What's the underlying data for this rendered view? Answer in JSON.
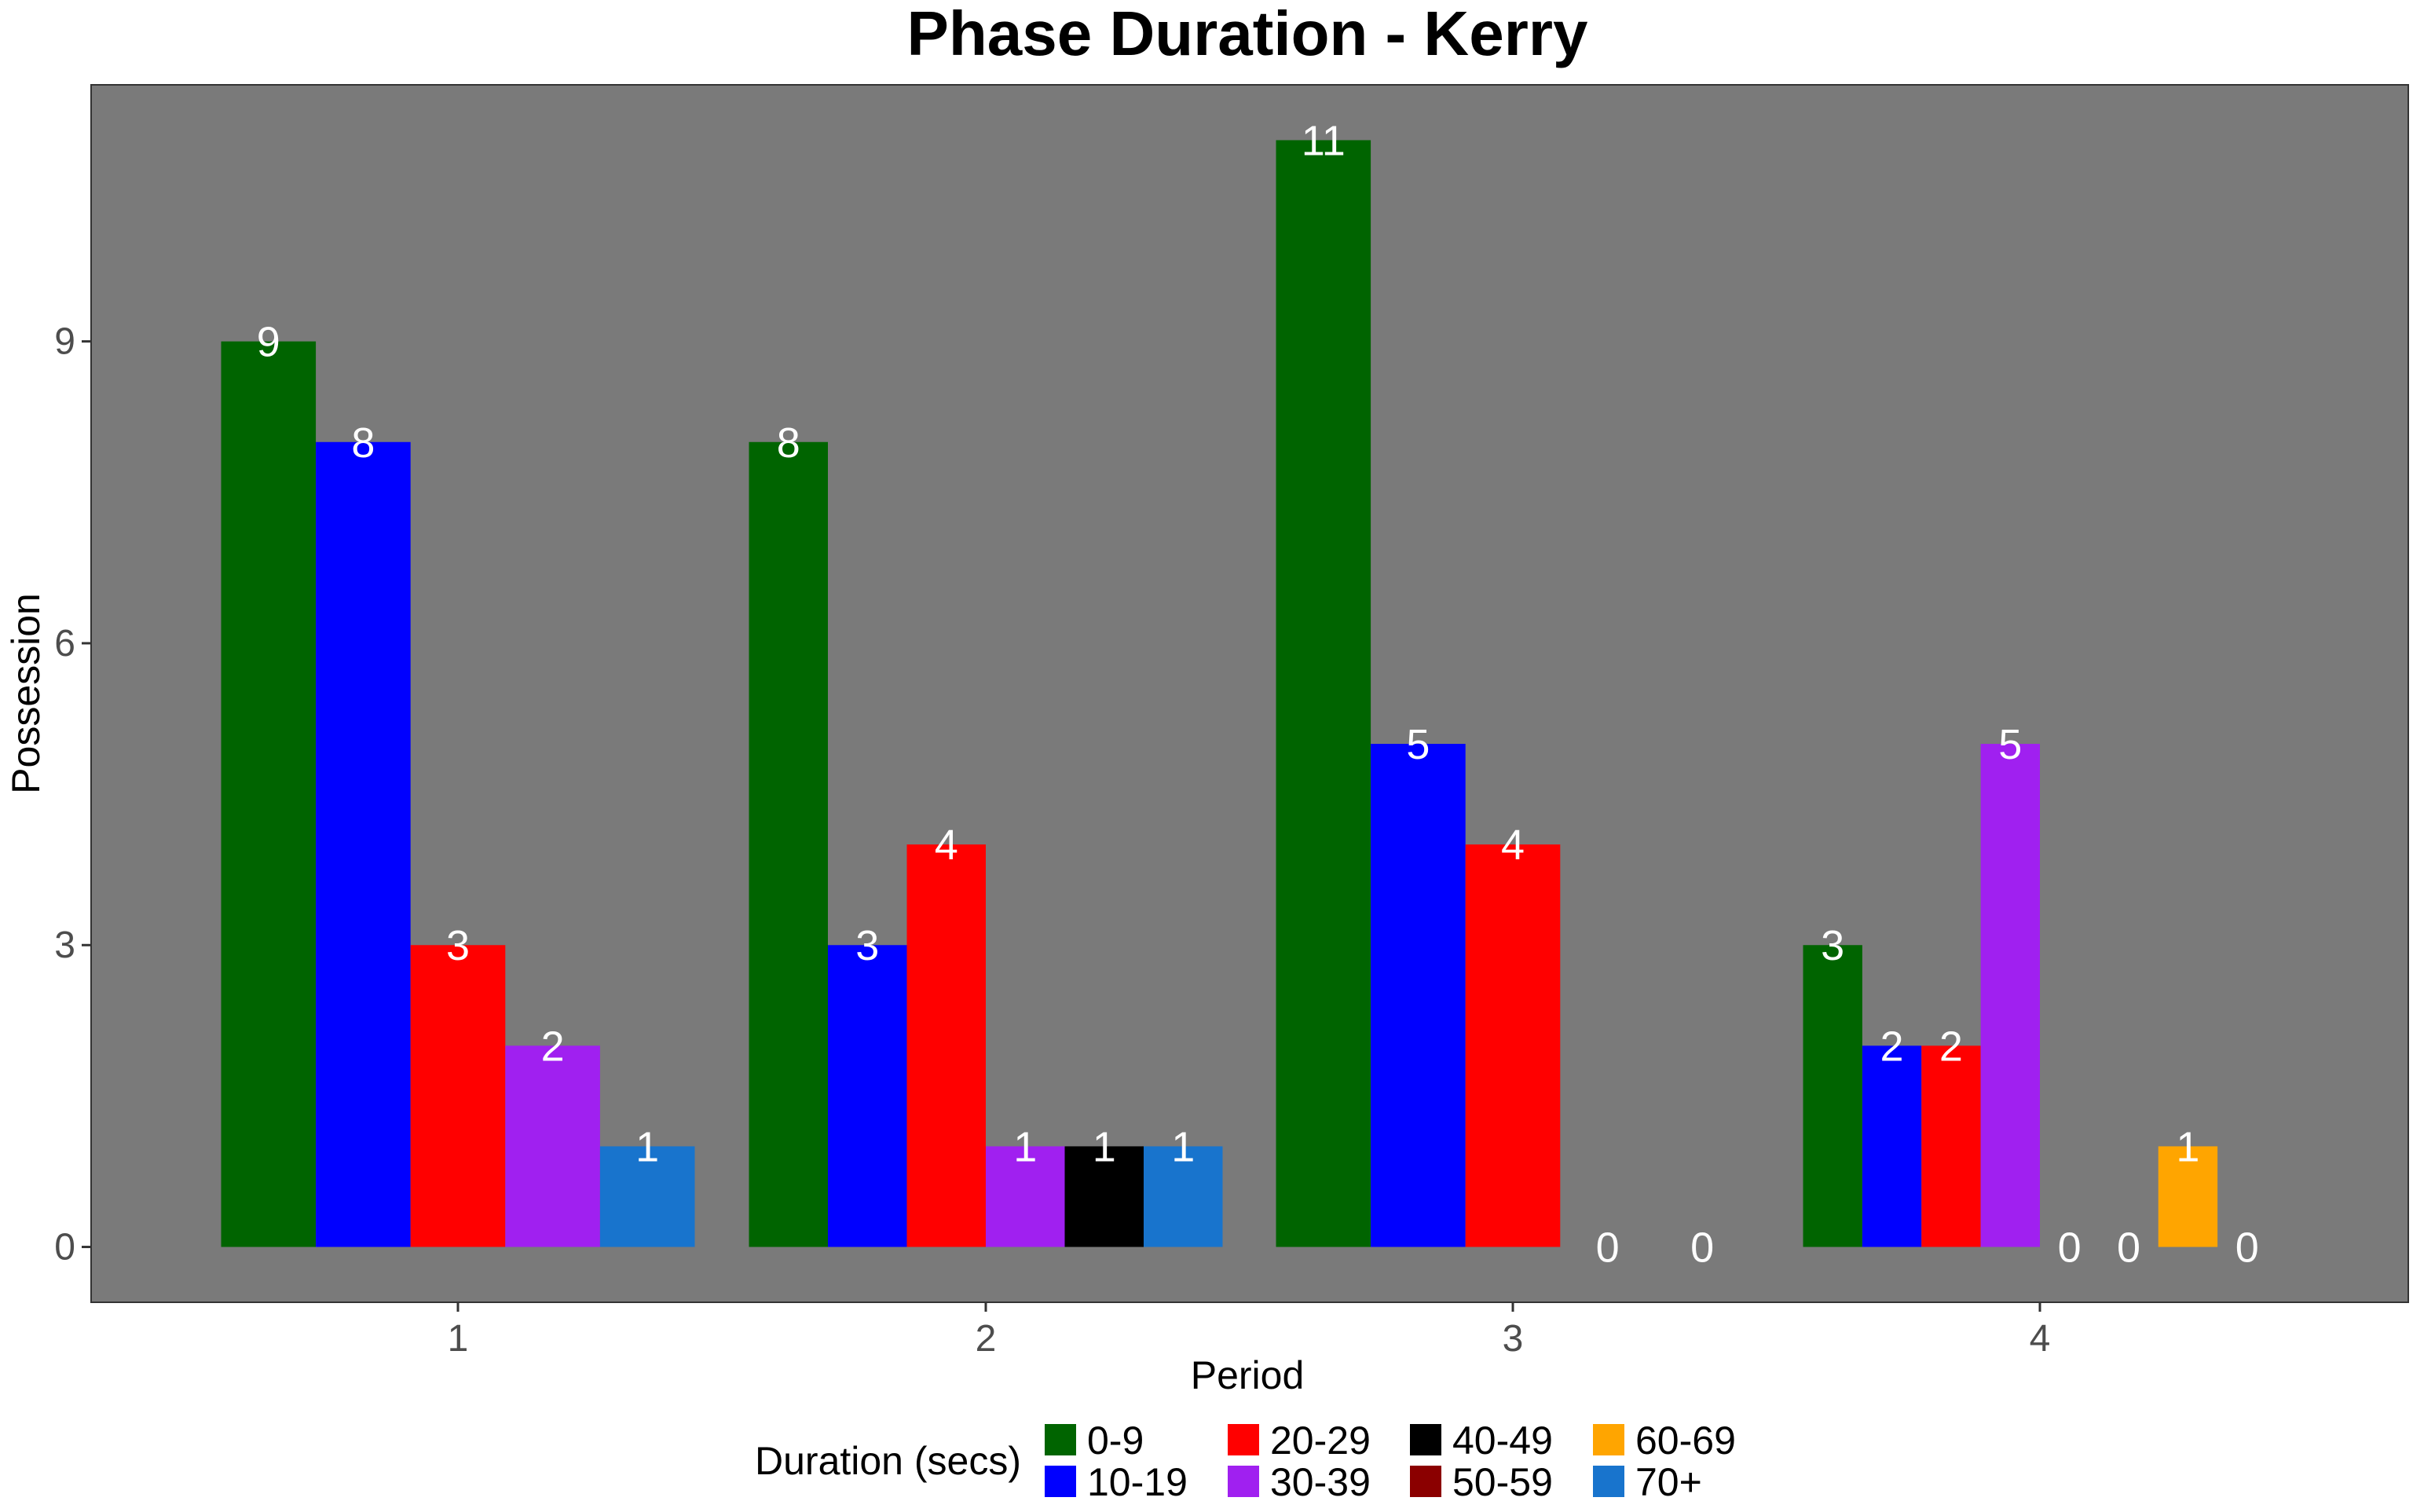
{
  "chart_data": {
    "type": "bar",
    "title": "Phase Duration - Kerry",
    "xlabel": "Period",
    "ylabel": "Possession",
    "ylim": [
      -0.55,
      11.55
    ],
    "yticks": [
      0,
      3,
      6,
      9
    ],
    "grid": false,
    "legend_position": "bottom",
    "legend_title": "Duration (secs)",
    "panel_background": "#7a7a7a",
    "legend_order": [
      "0-9",
      "20-29",
      "40-49",
      "60-69",
      "10-19",
      "30-39",
      "50-59",
      "70+"
    ],
    "categories": [
      "1",
      "2",
      "3",
      "4"
    ],
    "series": [
      {
        "name": "0-9",
        "color": "#006400"
      },
      {
        "name": "10-19",
        "color": "#0000ff"
      },
      {
        "name": "20-29",
        "color": "#ff0000"
      },
      {
        "name": "30-39",
        "color": "#a020f0"
      },
      {
        "name": "40-49",
        "color": "#000000"
      },
      {
        "name": "50-59",
        "color": "#8b0000"
      },
      {
        "name": "60-69",
        "color": "#ffa500"
      },
      {
        "name": "70+",
        "color": "#1874cd"
      }
    ],
    "groups": [
      {
        "period": "1",
        "bars": [
          {
            "series": "0-9",
            "value": 9
          },
          {
            "series": "10-19",
            "value": 8
          },
          {
            "series": "20-29",
            "value": 3
          },
          {
            "series": "30-39",
            "value": 2
          },
          {
            "series": "70+",
            "value": 1
          }
        ]
      },
      {
        "period": "2",
        "bars": [
          {
            "series": "0-9",
            "value": 8
          },
          {
            "series": "10-19",
            "value": 3
          },
          {
            "series": "20-29",
            "value": 4
          },
          {
            "series": "30-39",
            "value": 1
          },
          {
            "series": "40-49",
            "value": 1
          },
          {
            "series": "70+",
            "value": 1
          }
        ]
      },
      {
        "period": "3",
        "bars": [
          {
            "series": "0-9",
            "value": 11
          },
          {
            "series": "10-19",
            "value": 5
          },
          {
            "series": "20-29",
            "value": 4
          },
          {
            "series": "30-39",
            "value": 0
          },
          {
            "series": "40-49",
            "value": 0
          }
        ]
      },
      {
        "period": "4",
        "bars": [
          {
            "series": "0-9",
            "value": 3
          },
          {
            "series": "10-19",
            "value": 2
          },
          {
            "series": "20-29",
            "value": 2
          },
          {
            "series": "30-39",
            "value": 5
          },
          {
            "series": "40-49",
            "value": 0
          },
          {
            "series": "50-59",
            "value": 0
          },
          {
            "series": "60-69",
            "value": 1
          },
          {
            "series": "70+",
            "value": 0
          }
        ]
      }
    ]
  }
}
